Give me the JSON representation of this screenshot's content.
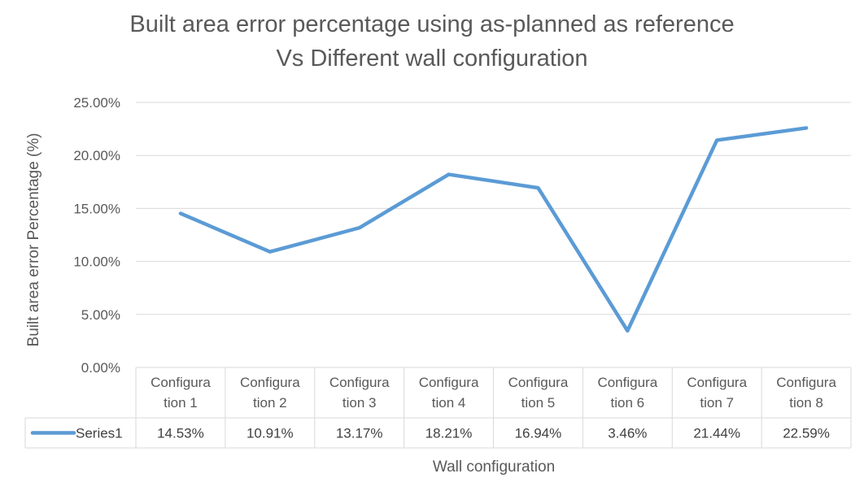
{
  "chart_data": {
    "type": "line",
    "title": [
      "Built area error percentage using as-planned as reference",
      "Vs Different wall configuration"
    ],
    "xlabel": "Wall configuration",
    "ylabel": "Built area error Percentage (%)",
    "ylim": [
      0,
      0.25
    ],
    "yticks": [
      "0.00%",
      "5.00%",
      "10.00%",
      "15.00%",
      "20.00%",
      "25.00%"
    ],
    "categories": [
      [
        "Configura",
        "tion 1"
      ],
      [
        "Configura",
        "tion 2"
      ],
      [
        "Configura",
        "tion 3"
      ],
      [
        "Configura",
        "tion 4"
      ],
      [
        "Configura",
        "tion 5"
      ],
      [
        "Configura",
        "tion 6"
      ],
      [
        "Configura",
        "tion 7"
      ],
      [
        "Configura",
        "tion 8"
      ]
    ],
    "series": [
      {
        "name": "Series1",
        "values": [
          0.1453,
          0.1091,
          0.1317,
          0.1821,
          0.1694,
          0.0346,
          0.2144,
          0.2259
        ],
        "labels": [
          "14.53%",
          "10.91%",
          "13.17%",
          "18.21%",
          "16.94%",
          "3.46%",
          "21.44%",
          "22.59%"
        ],
        "color": "#5B9BD5"
      }
    ],
    "grid": true,
    "legend": "data-table",
    "data_table": true
  }
}
